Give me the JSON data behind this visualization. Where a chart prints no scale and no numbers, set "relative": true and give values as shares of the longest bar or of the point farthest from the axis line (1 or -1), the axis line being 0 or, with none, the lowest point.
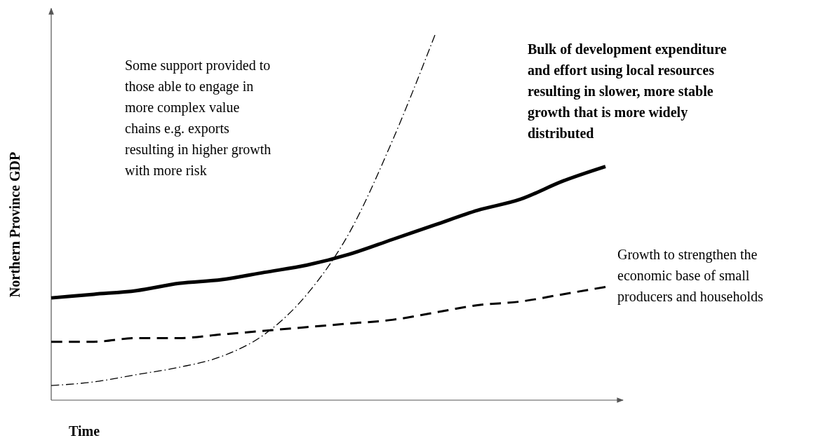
{
  "chart_data": {
    "type": "line",
    "relative": true,
    "xlabel": "Time",
    "ylabel": "Northern Province GDP",
    "categories": [
      null,
      null,
      null,
      null,
      null,
      null,
      null,
      null,
      null,
      null,
      null,
      null,
      null,
      null
    ],
    "series": [
      {
        "color": "#000000",
        "line_style": "solid",
        "values": [
          0.28,
          0.29,
          0.3,
          0.32,
          0.33,
          0.35,
          0.37,
          0.4,
          0.44,
          0.48,
          0.52,
          0.55,
          0.6,
          0.64
        ]
      },
      {
        "color": "#000000",
        "line_style": "dashed",
        "values": [
          0.16,
          0.16,
          0.17,
          0.17,
          0.18,
          0.19,
          0.2,
          0.21,
          0.22,
          0.24,
          0.26,
          0.27,
          0.29,
          0.31
        ]
      },
      {
        "color": "#000000",
        "line_style": "dashdot",
        "values": [
          0.04,
          0.05,
          0.07,
          0.09,
          0.12,
          0.18,
          0.29,
          0.46,
          0.71,
          1.0,
          null,
          null,
          null,
          null
        ]
      }
    ],
    "annotations": [
      "Some support provided to those able to engage in more complex value chains e.g. exports resulting in higher growth with more risk",
      "Bulk of development expenditure and effort using local resources resulting in slower, more stable growth that is more widely distributed",
      "Growth to strengthen the economic base of small producers and households"
    ]
  }
}
